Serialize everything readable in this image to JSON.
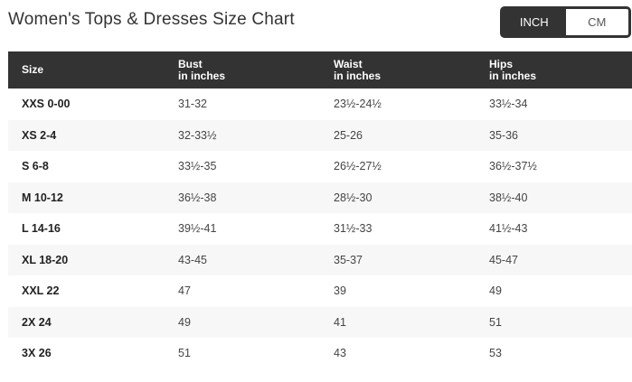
{
  "title": "Women's Tops & Dresses Size Chart",
  "unit_toggle": {
    "options": [
      "INCH",
      "CM"
    ],
    "selected": "INCH"
  },
  "table": {
    "headers": [
      {
        "label": "Size",
        "sub": ""
      },
      {
        "label": "Bust",
        "sub": "in inches"
      },
      {
        "label": "Waist",
        "sub": "in inches"
      },
      {
        "label": "Hips",
        "sub": "in inches"
      }
    ],
    "rows": [
      [
        "XXS 0-00",
        "31-32",
        "23½-24½",
        "33½-34"
      ],
      [
        "XS 2-4",
        "32-33½",
        "25-26",
        "35-36"
      ],
      [
        "S 6-8",
        "33½-35",
        "26½-27½",
        "36½-37½"
      ],
      [
        "M 10-12",
        "36½-38",
        "28½-30",
        "38½-40"
      ],
      [
        "L 14-16",
        "39½-41",
        "31½-33",
        "41½-43"
      ],
      [
        "XL 18-20",
        "43-45",
        "35-37",
        "45-47"
      ],
      [
        "XXL 22",
        "47",
        "39",
        "49"
      ],
      [
        "2X 24",
        "49",
        "41",
        "51"
      ],
      [
        "3X 26",
        "51",
        "43",
        "53"
      ]
    ]
  }
}
